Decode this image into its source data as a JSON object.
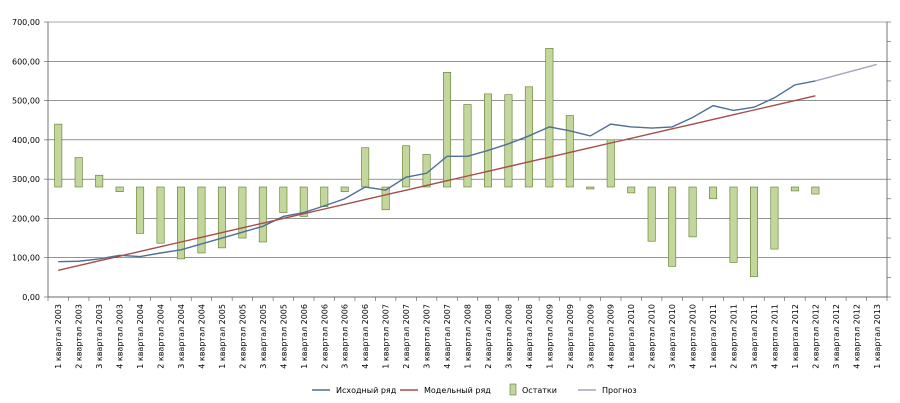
{
  "chart_data": {
    "type": "bar",
    "title": "",
    "xlabel": "",
    "ylabel": "",
    "ylim": [
      0,
      700
    ],
    "ytick_step": 100,
    "ytick_labels": [
      "0,00",
      "100,00",
      "200,00",
      "300,00",
      "400,00",
      "500,00",
      "600,00",
      "700,00"
    ],
    "grid": true,
    "legend_position": "bottom",
    "residual_baseline": 280,
    "categories": [
      "1 квартал 2003",
      "2 квартал 2003",
      "3 квартал 2003",
      "4 квартал 2003",
      "1 квартал 2004",
      "2 квартал 2004",
      "3 квартал 2004",
      "4 квартал 2004",
      "1 квартал 2005",
      "2 квартал 2005",
      "3 квартал 2005",
      "4 квартал 2005",
      "1 квартал 2006",
      "2 квартал 2006",
      "3 квартал 2006",
      "4 квартал 2006",
      "1 квартал 2007",
      "2 квартал 2007",
      "3 квартал 2007",
      "4 квартал 2007",
      "1 квартал 2008",
      "2 квартал 2008",
      "3 квартал 2008",
      "4 квартал 2008",
      "1 квартал 2009",
      "2 квартал 2009",
      "3 квартал 2009",
      "4 квартал 2009",
      "1 квартал 2010",
      "2 квартал 2010",
      "3 квартал 2010",
      "4 квартал 2010",
      "1 квартал 2011",
      "2 квартал 2011",
      "3 квартал 2011",
      "4 квартал 2011",
      "1 квартал 2012",
      "2 квартал 2012",
      "3 квартал 2012",
      "4 квартал 2012",
      "1 квартал 2013"
    ],
    "series": [
      {
        "name": "Исходный ряд",
        "kind": "line",
        "color": "#4f6f96",
        "values": [
          90,
          91,
          97,
          106,
          103,
          112,
          120,
          135,
          150,
          165,
          180,
          205,
          215,
          232,
          250,
          280,
          272,
          305,
          315,
          358,
          358,
          373,
          390,
          410,
          433,
          423,
          410,
          440,
          433,
          430,
          433,
          457,
          487,
          475,
          483,
          507,
          540,
          550,
          null,
          null,
          null
        ]
      },
      {
        "name": "Модельный ряд",
        "kind": "line",
        "color": "#a64d4b",
        "values": [
          68,
          80,
          92,
          104,
          116,
          128,
          140,
          152,
          164,
          176,
          188,
          200,
          212,
          224,
          236,
          248,
          260,
          272,
          284,
          296,
          308,
          320,
          332,
          344,
          356,
          368,
          380,
          392,
          404,
          416,
          428,
          440,
          452,
          464,
          476,
          488,
          500,
          512,
          null,
          null,
          null
        ]
      },
      {
        "name": "Остатки",
        "kind": "bar",
        "color": "#c3d69b",
        "values": [
          440,
          355,
          310,
          268,
          162,
          137,
          97,
          112,
          125,
          150,
          140,
          215,
          205,
          230,
          268,
          380,
          222,
          385,
          363,
          572,
          490,
          517,
          515,
          535,
          633,
          462,
          275,
          400,
          265,
          142,
          78,
          153,
          250,
          88,
          52,
          122,
          270,
          262,
          null,
          null,
          null
        ]
      },
      {
        "name": "Прогноз",
        "kind": "line",
        "color": "#a9a2c0",
        "values": [
          null,
          null,
          null,
          null,
          null,
          null,
          null,
          null,
          null,
          null,
          null,
          null,
          null,
          null,
          null,
          null,
          null,
          null,
          null,
          null,
          null,
          null,
          null,
          null,
          null,
          null,
          null,
          null,
          null,
          null,
          null,
          null,
          null,
          null,
          null,
          null,
          null,
          550,
          564,
          578,
          592
        ]
      }
    ]
  }
}
